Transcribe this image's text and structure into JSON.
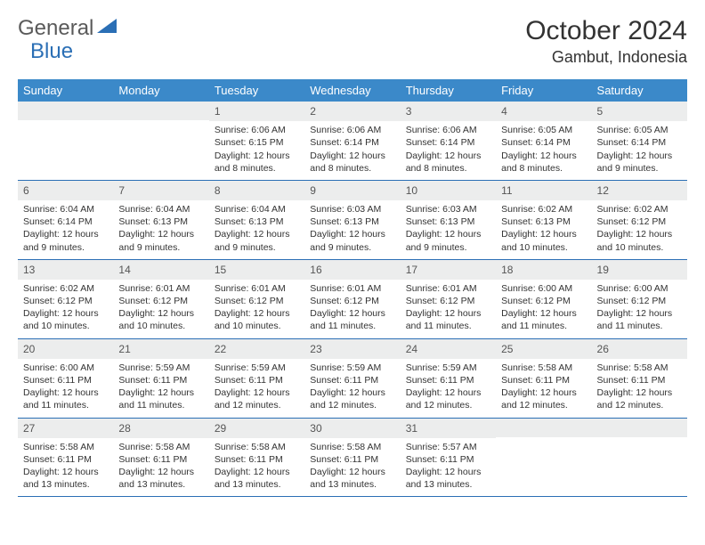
{
  "logo": {
    "text1": "General",
    "text2": "Blue"
  },
  "title": "October 2024",
  "location": "Gambut, Indonesia",
  "weekdays": [
    "Sunday",
    "Monday",
    "Tuesday",
    "Wednesday",
    "Thursday",
    "Friday",
    "Saturday"
  ],
  "colors": {
    "header_bar": "#3b89c9",
    "row_divider": "#2b6fb5",
    "daynum_bg": "#eceded",
    "logo_gray": "#5a5a5a",
    "logo_blue": "#2b6fb5"
  },
  "weeks": [
    [
      null,
      null,
      {
        "n": "1",
        "sr": "Sunrise: 6:06 AM",
        "ss": "Sunset: 6:15 PM",
        "d1": "Daylight: 12 hours",
        "d2": "and 8 minutes."
      },
      {
        "n": "2",
        "sr": "Sunrise: 6:06 AM",
        "ss": "Sunset: 6:14 PM",
        "d1": "Daylight: 12 hours",
        "d2": "and 8 minutes."
      },
      {
        "n": "3",
        "sr": "Sunrise: 6:06 AM",
        "ss": "Sunset: 6:14 PM",
        "d1": "Daylight: 12 hours",
        "d2": "and 8 minutes."
      },
      {
        "n": "4",
        "sr": "Sunrise: 6:05 AM",
        "ss": "Sunset: 6:14 PM",
        "d1": "Daylight: 12 hours",
        "d2": "and 8 minutes."
      },
      {
        "n": "5",
        "sr": "Sunrise: 6:05 AM",
        "ss": "Sunset: 6:14 PM",
        "d1": "Daylight: 12 hours",
        "d2": "and 9 minutes."
      }
    ],
    [
      {
        "n": "6",
        "sr": "Sunrise: 6:04 AM",
        "ss": "Sunset: 6:14 PM",
        "d1": "Daylight: 12 hours",
        "d2": "and 9 minutes."
      },
      {
        "n": "7",
        "sr": "Sunrise: 6:04 AM",
        "ss": "Sunset: 6:13 PM",
        "d1": "Daylight: 12 hours",
        "d2": "and 9 minutes."
      },
      {
        "n": "8",
        "sr": "Sunrise: 6:04 AM",
        "ss": "Sunset: 6:13 PM",
        "d1": "Daylight: 12 hours",
        "d2": "and 9 minutes."
      },
      {
        "n": "9",
        "sr": "Sunrise: 6:03 AM",
        "ss": "Sunset: 6:13 PM",
        "d1": "Daylight: 12 hours",
        "d2": "and 9 minutes."
      },
      {
        "n": "10",
        "sr": "Sunrise: 6:03 AM",
        "ss": "Sunset: 6:13 PM",
        "d1": "Daylight: 12 hours",
        "d2": "and 9 minutes."
      },
      {
        "n": "11",
        "sr": "Sunrise: 6:02 AM",
        "ss": "Sunset: 6:13 PM",
        "d1": "Daylight: 12 hours",
        "d2": "and 10 minutes."
      },
      {
        "n": "12",
        "sr": "Sunrise: 6:02 AM",
        "ss": "Sunset: 6:12 PM",
        "d1": "Daylight: 12 hours",
        "d2": "and 10 minutes."
      }
    ],
    [
      {
        "n": "13",
        "sr": "Sunrise: 6:02 AM",
        "ss": "Sunset: 6:12 PM",
        "d1": "Daylight: 12 hours",
        "d2": "and 10 minutes."
      },
      {
        "n": "14",
        "sr": "Sunrise: 6:01 AM",
        "ss": "Sunset: 6:12 PM",
        "d1": "Daylight: 12 hours",
        "d2": "and 10 minutes."
      },
      {
        "n": "15",
        "sr": "Sunrise: 6:01 AM",
        "ss": "Sunset: 6:12 PM",
        "d1": "Daylight: 12 hours",
        "d2": "and 10 minutes."
      },
      {
        "n": "16",
        "sr": "Sunrise: 6:01 AM",
        "ss": "Sunset: 6:12 PM",
        "d1": "Daylight: 12 hours",
        "d2": "and 11 minutes."
      },
      {
        "n": "17",
        "sr": "Sunrise: 6:01 AM",
        "ss": "Sunset: 6:12 PM",
        "d1": "Daylight: 12 hours",
        "d2": "and 11 minutes."
      },
      {
        "n": "18",
        "sr": "Sunrise: 6:00 AM",
        "ss": "Sunset: 6:12 PM",
        "d1": "Daylight: 12 hours",
        "d2": "and 11 minutes."
      },
      {
        "n": "19",
        "sr": "Sunrise: 6:00 AM",
        "ss": "Sunset: 6:12 PM",
        "d1": "Daylight: 12 hours",
        "d2": "and 11 minutes."
      }
    ],
    [
      {
        "n": "20",
        "sr": "Sunrise: 6:00 AM",
        "ss": "Sunset: 6:11 PM",
        "d1": "Daylight: 12 hours",
        "d2": "and 11 minutes."
      },
      {
        "n": "21",
        "sr": "Sunrise: 5:59 AM",
        "ss": "Sunset: 6:11 PM",
        "d1": "Daylight: 12 hours",
        "d2": "and 11 minutes."
      },
      {
        "n": "22",
        "sr": "Sunrise: 5:59 AM",
        "ss": "Sunset: 6:11 PM",
        "d1": "Daylight: 12 hours",
        "d2": "and 12 minutes."
      },
      {
        "n": "23",
        "sr": "Sunrise: 5:59 AM",
        "ss": "Sunset: 6:11 PM",
        "d1": "Daylight: 12 hours",
        "d2": "and 12 minutes."
      },
      {
        "n": "24",
        "sr": "Sunrise: 5:59 AM",
        "ss": "Sunset: 6:11 PM",
        "d1": "Daylight: 12 hours",
        "d2": "and 12 minutes."
      },
      {
        "n": "25",
        "sr": "Sunrise: 5:58 AM",
        "ss": "Sunset: 6:11 PM",
        "d1": "Daylight: 12 hours",
        "d2": "and 12 minutes."
      },
      {
        "n": "26",
        "sr": "Sunrise: 5:58 AM",
        "ss": "Sunset: 6:11 PM",
        "d1": "Daylight: 12 hours",
        "d2": "and 12 minutes."
      }
    ],
    [
      {
        "n": "27",
        "sr": "Sunrise: 5:58 AM",
        "ss": "Sunset: 6:11 PM",
        "d1": "Daylight: 12 hours",
        "d2": "and 13 minutes."
      },
      {
        "n": "28",
        "sr": "Sunrise: 5:58 AM",
        "ss": "Sunset: 6:11 PM",
        "d1": "Daylight: 12 hours",
        "d2": "and 13 minutes."
      },
      {
        "n": "29",
        "sr": "Sunrise: 5:58 AM",
        "ss": "Sunset: 6:11 PM",
        "d1": "Daylight: 12 hours",
        "d2": "and 13 minutes."
      },
      {
        "n": "30",
        "sr": "Sunrise: 5:58 AM",
        "ss": "Sunset: 6:11 PM",
        "d1": "Daylight: 12 hours",
        "d2": "and 13 minutes."
      },
      {
        "n": "31",
        "sr": "Sunrise: 5:57 AM",
        "ss": "Sunset: 6:11 PM",
        "d1": "Daylight: 12 hours",
        "d2": "and 13 minutes."
      },
      null,
      null
    ]
  ]
}
